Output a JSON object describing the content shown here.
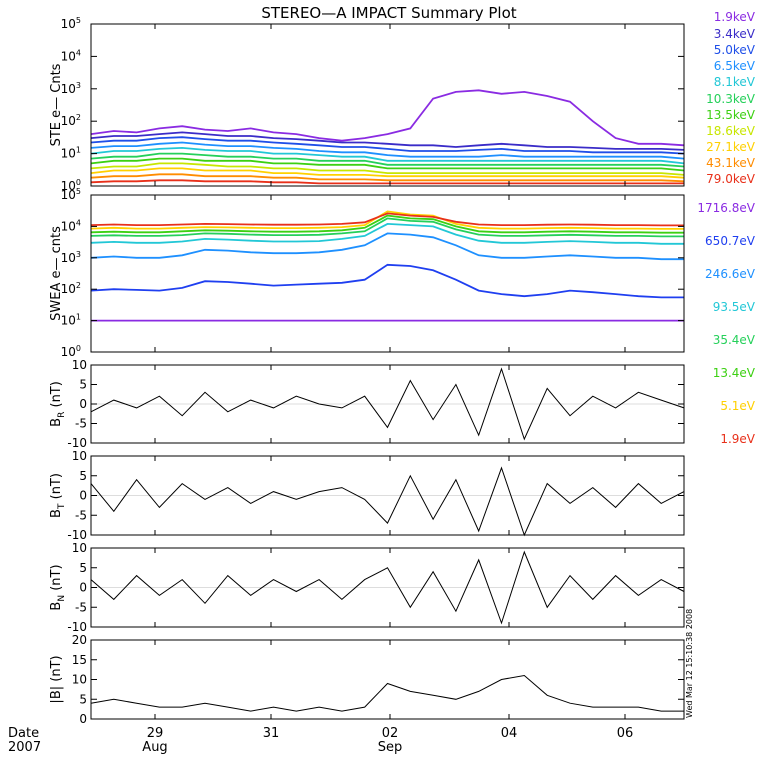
{
  "title": "STEREO—A IMPACT Summary Plot",
  "stamp": "Wed Mar 12 15:10:38 2008",
  "date_label": "Date",
  "year_label": "2007",
  "time_axis": {
    "ticks": [
      {
        "day": "29",
        "month": "Aug"
      },
      {
        "day": "31",
        "month": ""
      },
      {
        "day": "02",
        "month": "Sep"
      },
      {
        "day": "04",
        "month": ""
      },
      {
        "day": "06",
        "month": ""
      }
    ]
  },
  "chart_data": [
    {
      "type": "line",
      "name": "ste",
      "ylabel": "STE e— Cnts",
      "yscale": "log",
      "ylim": [
        1,
        100000
      ],
      "yticks": [
        {
          "base": "10",
          "exp": "0"
        },
        {
          "base": "10",
          "exp": "1"
        },
        {
          "base": "10",
          "exp": "2"
        },
        {
          "base": "10",
          "exp": "3"
        },
        {
          "base": "10",
          "exp": "4"
        },
        {
          "base": "10",
          "exp": "5"
        }
      ],
      "series": [
        {
          "name": "1.9keV",
          "color": "#8a2be2",
          "values": [
            40,
            50,
            45,
            60,
            70,
            55,
            50,
            60,
            45,
            40,
            30,
            25,
            30,
            40,
            60,
            500,
            800,
            900,
            700,
            800,
            600,
            400,
            100,
            30,
            20,
            20,
            18
          ]
        },
        {
          "name": "3.4keV",
          "color": "#3a2cc8",
          "values": [
            30,
            35,
            35,
            40,
            45,
            40,
            35,
            35,
            30,
            28,
            25,
            22,
            22,
            20,
            18,
            18,
            16,
            18,
            20,
            18,
            16,
            16,
            15,
            14,
            14,
            14,
            13
          ]
        },
        {
          "name": "5.0keV",
          "color": "#1f4fe8",
          "values": [
            22,
            25,
            25,
            30,
            32,
            28,
            25,
            25,
            22,
            20,
            18,
            16,
            16,
            14,
            12,
            12,
            12,
            13,
            14,
            12,
            12,
            12,
            11,
            11,
            11,
            11,
            10
          ]
        },
        {
          "name": "6.5keV",
          "color": "#1e90ff",
          "values": [
            15,
            17,
            17,
            20,
            22,
            19,
            17,
            17,
            15,
            14,
            12,
            11,
            11,
            9,
            8,
            8,
            8,
            8,
            9,
            8,
            8,
            8,
            8,
            8,
            8,
            8,
            7
          ]
        },
        {
          "name": "8.1keV",
          "color": "#22c7d6",
          "values": [
            10,
            12,
            12,
            14,
            15,
            13,
            12,
            12,
            10,
            10,
            9,
            8,
            8,
            6,
            6,
            6,
            6,
            6,
            6,
            6,
            6,
            6,
            6,
            6,
            6,
            6,
            5
          ]
        },
        {
          "name": "10.3keV",
          "color": "#25d05a",
          "values": [
            7,
            8,
            8,
            10,
            10,
            9,
            8,
            8,
            7,
            7,
            6,
            6,
            6,
            4.5,
            4.5,
            4.5,
            4.5,
            4.5,
            4.5,
            4.5,
            4.5,
            4.5,
            4.5,
            4.5,
            4.5,
            4.5,
            4
          ]
        },
        {
          "name": "13.5keV",
          "color": "#3cd012",
          "values": [
            5,
            6,
            6,
            7,
            7,
            6,
            6,
            6,
            5,
            5,
            4.5,
            4.5,
            4.5,
            3.5,
            3.5,
            3.5,
            3.5,
            3.5,
            3.5,
            3.5,
            3.5,
            3.5,
            3.5,
            3.5,
            3.5,
            3.5,
            3
          ]
        },
        {
          "name": "18.6keV",
          "color": "#c8e600",
          "values": [
            3.5,
            4,
            4,
            5,
            5,
            4.5,
            4,
            4,
            3.5,
            3.5,
            3,
            3,
            3,
            2.5,
            2.5,
            2.5,
            2.5,
            2.5,
            2.5,
            2.5,
            2.5,
            2.5,
            2.5,
            2.5,
            2.5,
            2.5,
            2.2
          ]
        },
        {
          "name": "27.1keV",
          "color": "#ffd000",
          "values": [
            2.5,
            3,
            3,
            3.5,
            3.5,
            3,
            3,
            3,
            2.5,
            2.5,
            2.2,
            2.2,
            2.2,
            2,
            2,
            2,
            2,
            2,
            2,
            2,
            2,
            2,
            2,
            2,
            2,
            2,
            1.8
          ]
        },
        {
          "name": "43.1keV",
          "color": "#ff8c00",
          "values": [
            1.8,
            2,
            2,
            2.3,
            2.3,
            2,
            2,
            2,
            1.8,
            1.8,
            1.6,
            1.6,
            1.6,
            1.5,
            1.5,
            1.5,
            1.5,
            1.5,
            1.5,
            1.5,
            1.5,
            1.5,
            1.5,
            1.5,
            1.5,
            1.5,
            1.4
          ]
        },
        {
          "name": "79.0keV",
          "color": "#e8301a",
          "values": [
            1.3,
            1.4,
            1.4,
            1.5,
            1.5,
            1.4,
            1.4,
            1.4,
            1.3,
            1.3,
            1.2,
            1.2,
            1.2,
            1.2,
            1.2,
            1.2,
            1.2,
            1.2,
            1.2,
            1.2,
            1.2,
            1.2,
            1.2,
            1.2,
            1.2,
            1.2,
            1.2
          ]
        }
      ]
    },
    {
      "type": "line",
      "name": "swea",
      "ylabel": "SWEA e— cnts",
      "yscale": "log",
      "ylim": [
        1,
        100000
      ],
      "yticks": [
        {
          "base": "10",
          "exp": "0"
        },
        {
          "base": "10",
          "exp": "1"
        },
        {
          "base": "10",
          "exp": "2"
        },
        {
          "base": "10",
          "exp": "3"
        },
        {
          "base": "10",
          "exp": "4"
        },
        {
          "base": "10",
          "exp": "5"
        }
      ],
      "series": [
        {
          "name": "1716.8eV",
          "color": "#8a2be2",
          "values": [
            10,
            10,
            10,
            10,
            10,
            10,
            10,
            10,
            10,
            10,
            10,
            10,
            10,
            10,
            10,
            10,
            10,
            10,
            10,
            10,
            10,
            10,
            10,
            10,
            10,
            10,
            10
          ]
        },
        {
          "name": "650.7eV",
          "color": "#1f3ff0",
          "values": [
            90,
            100,
            95,
            90,
            110,
            180,
            170,
            150,
            130,
            140,
            150,
            160,
            200,
            600,
            550,
            400,
            200,
            90,
            70,
            60,
            70,
            90,
            80,
            70,
            60,
            55,
            55
          ]
        },
        {
          "name": "246.6eV",
          "color": "#1e90ff",
          "values": [
            1000,
            1100,
            1000,
            1000,
            1200,
            1800,
            1700,
            1500,
            1400,
            1400,
            1500,
            1800,
            2500,
            6000,
            5500,
            4500,
            2500,
            1200,
            1000,
            1000,
            1100,
            1200,
            1100,
            1000,
            1000,
            900,
            900
          ]
        },
        {
          "name": "93.5eV",
          "color": "#22c7d6",
          "values": [
            3000,
            3200,
            3000,
            3000,
            3300,
            4000,
            3800,
            3500,
            3300,
            3300,
            3400,
            4000,
            5000,
            12000,
            11000,
            10000,
            5500,
            3500,
            3000,
            3000,
            3200,
            3400,
            3200,
            3000,
            3000,
            2800,
            2800
          ]
        },
        {
          "name": "35.4eV",
          "color": "#25d05a",
          "values": [
            5000,
            5200,
            5000,
            5000,
            5300,
            6000,
            5800,
            5500,
            5300,
            5300,
            5400,
            6000,
            7000,
            18000,
            15000,
            14000,
            8000,
            5500,
            5000,
            5000,
            5200,
            5400,
            5200,
            5000,
            5000,
            4800,
            4800
          ]
        },
        {
          "name": "13.4eV",
          "color": "#3cd012",
          "values": [
            6500,
            6800,
            6500,
            6500,
            7000,
            7500,
            7300,
            7000,
            6800,
            6800,
            7000,
            7500,
            9000,
            22000,
            18000,
            17000,
            10000,
            7000,
            6500,
            6500,
            6800,
            7000,
            6800,
            6500,
            6500,
            6300,
            6300
          ]
        },
        {
          "name": "5.1eV",
          "color": "#ffd000",
          "values": [
            8500,
            9000,
            8500,
            8500,
            9000,
            9500,
            9300,
            9000,
            8800,
            8800,
            9000,
            9500,
            11000,
            30000,
            24000,
            22000,
            12000,
            9000,
            8500,
            8500,
            8800,
            9000,
            8800,
            8500,
            8500,
            8300,
            8300
          ]
        },
        {
          "name": "1.9eV",
          "color": "#e8301a",
          "values": [
            11000,
            11500,
            11000,
            11000,
            11500,
            12000,
            11800,
            11500,
            11300,
            11300,
            11500,
            12000,
            13500,
            26000,
            22000,
            20000,
            14000,
            11500,
            11000,
            11000,
            11300,
            11500,
            11300,
            11000,
            11000,
            10800,
            10800
          ]
        }
      ]
    },
    {
      "type": "line",
      "name": "br",
      "ylabel": "B_R (nT)",
      "ylim": [
        -10,
        10
      ],
      "yticks": [
        "-10",
        "-5",
        "0",
        "5",
        "10"
      ],
      "series": [
        {
          "color": "#000000",
          "values": [
            -2,
            1,
            -1,
            2,
            -3,
            3,
            -2,
            1,
            -1,
            2,
            0,
            -1,
            2,
            -6,
            6,
            -4,
            5,
            -8,
            9,
            -9,
            4,
            -3,
            2,
            -1,
            3,
            1,
            -1
          ]
        }
      ]
    },
    {
      "type": "line",
      "name": "bt",
      "ylabel": "B_T (nT)",
      "ylim": [
        -10,
        10
      ],
      "yticks": [
        "-10",
        "-5",
        "0",
        "5",
        "10"
      ],
      "series": [
        {
          "color": "#000000",
          "values": [
            3,
            -4,
            4,
            -3,
            3,
            -1,
            2,
            -2,
            1,
            -1,
            1,
            2,
            -1,
            -7,
            5,
            -6,
            4,
            -9,
            7,
            -10,
            3,
            -2,
            2,
            -3,
            3,
            -2,
            1
          ]
        }
      ]
    },
    {
      "type": "line",
      "name": "bn",
      "ylabel": "B_N (nT)",
      "ylim": [
        -10,
        10
      ],
      "yticks": [
        "-10",
        "-5",
        "0",
        "5",
        "10"
      ],
      "series": [
        {
          "color": "#000000",
          "values": [
            2,
            -3,
            3,
            -2,
            2,
            -4,
            3,
            -2,
            2,
            -1,
            2,
            -3,
            2,
            5,
            -5,
            4,
            -6,
            7,
            -9,
            9,
            -5,
            3,
            -3,
            3,
            -2,
            2,
            -1
          ]
        }
      ]
    },
    {
      "type": "line",
      "name": "bmag",
      "ylabel": "|B| (nT)",
      "ylim": [
        0,
        20
      ],
      "yticks": [
        "0",
        "5",
        "10",
        "15",
        "20"
      ],
      "series": [
        {
          "color": "#000000",
          "values": [
            4,
            5,
            4,
            3,
            3,
            4,
            3,
            2,
            3,
            2,
            3,
            2,
            3,
            9,
            7,
            6,
            5,
            7,
            10,
            11,
            6,
            4,
            3,
            3,
            3,
            2,
            2
          ]
        }
      ]
    }
  ]
}
